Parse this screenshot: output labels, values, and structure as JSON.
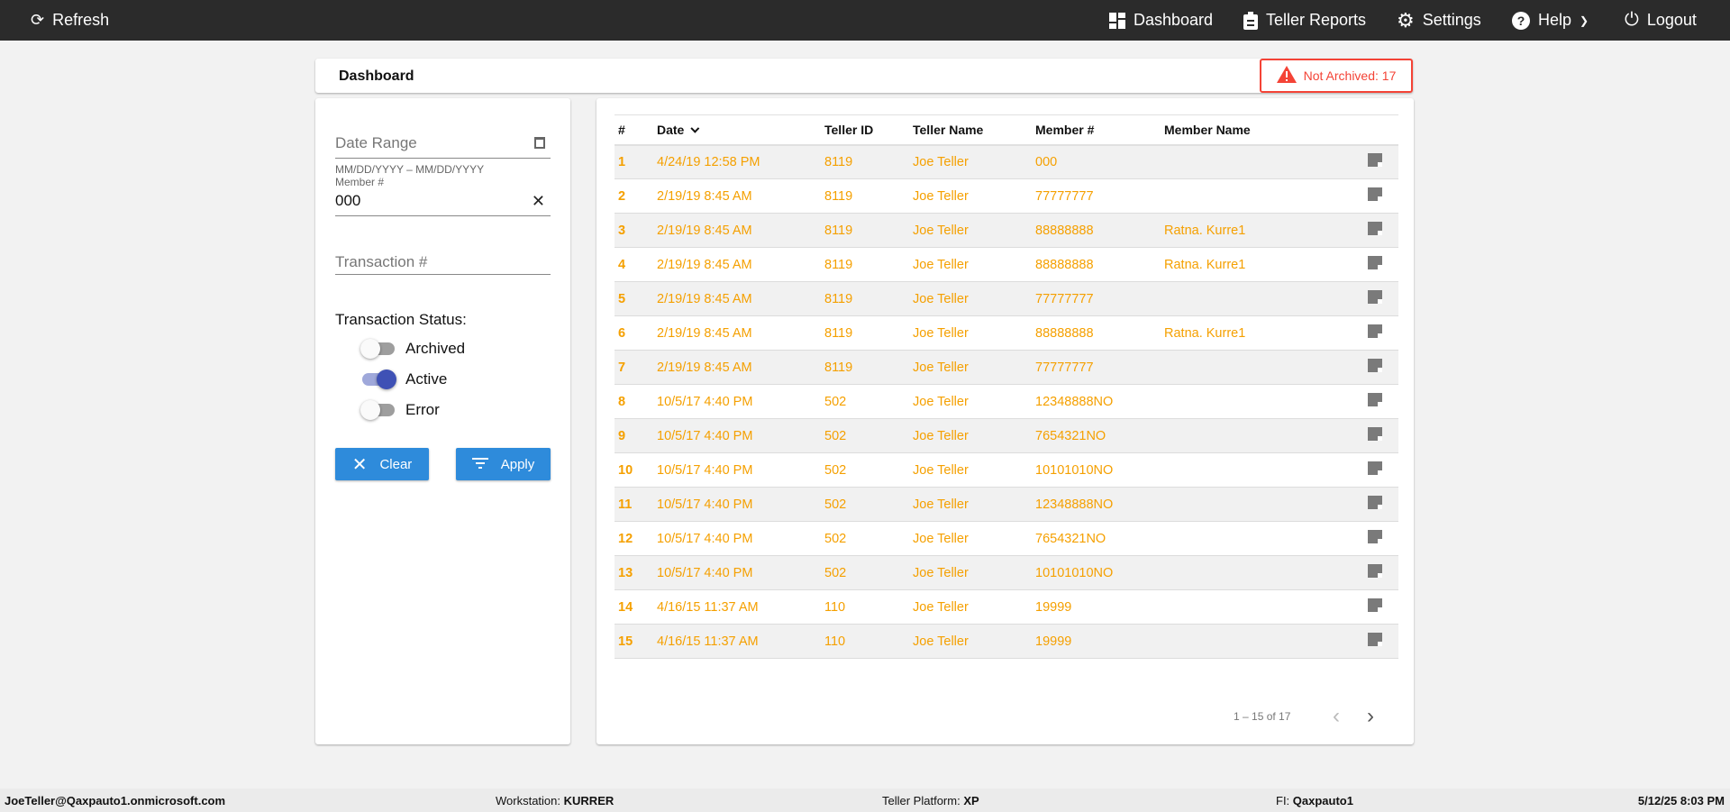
{
  "nav": {
    "refresh": "Refresh",
    "dashboard": "Dashboard",
    "teller_reports": "Teller Reports",
    "settings": "Settings",
    "help": "Help",
    "logout": "Logout"
  },
  "header": {
    "title": "Dashboard",
    "alert": "Not Archived: 17",
    "alert_color": "#f44336"
  },
  "filters": {
    "date_range_placeholder": "Date Range",
    "date_hint": "MM/DD/YYYY – MM/DD/YYYY",
    "member_label": "Member #",
    "member_value": "000",
    "transaction_placeholder": "Transaction #",
    "status_label": "Transaction Status:",
    "toggles": [
      {
        "label": "Archived",
        "on": false
      },
      {
        "label": "Active",
        "on": true
      },
      {
        "label": "Error",
        "on": false
      }
    ],
    "clear": "Clear",
    "apply": "Apply"
  },
  "table": {
    "columns": [
      "#",
      "Date",
      "Teller ID",
      "Teller Name",
      "Member #",
      "Member Name"
    ],
    "rows": [
      [
        "1",
        "4/24/19 12:58 PM",
        "8119",
        "Joe Teller",
        "000",
        ""
      ],
      [
        "2",
        "2/19/19 8:45 AM",
        "8119",
        "Joe Teller",
        "77777777",
        ""
      ],
      [
        "3",
        "2/19/19 8:45 AM",
        "8119",
        "Joe Teller",
        "88888888",
        "Ratna. Kurre1"
      ],
      [
        "4",
        "2/19/19 8:45 AM",
        "8119",
        "Joe Teller",
        "88888888",
        "Ratna. Kurre1"
      ],
      [
        "5",
        "2/19/19 8:45 AM",
        "8119",
        "Joe Teller",
        "77777777",
        ""
      ],
      [
        "6",
        "2/19/19 8:45 AM",
        "8119",
        "Joe Teller",
        "88888888",
        "Ratna. Kurre1"
      ],
      [
        "7",
        "2/19/19 8:45 AM",
        "8119",
        "Joe Teller",
        "77777777",
        ""
      ],
      [
        "8",
        "10/5/17 4:40 PM",
        "502",
        "Joe Teller",
        "12348888NO",
        ""
      ],
      [
        "9",
        "10/5/17 4:40 PM",
        "502",
        "Joe Teller",
        "7654321NO",
        ""
      ],
      [
        "10",
        "10/5/17 4:40 PM",
        "502",
        "Joe Teller",
        "10101010NO",
        ""
      ],
      [
        "11",
        "10/5/17 4:40 PM",
        "502",
        "Joe Teller",
        "12348888NO",
        ""
      ],
      [
        "12",
        "10/5/17 4:40 PM",
        "502",
        "Joe Teller",
        "7654321NO",
        ""
      ],
      [
        "13",
        "10/5/17 4:40 PM",
        "502",
        "Joe Teller",
        "10101010NO",
        ""
      ],
      [
        "14",
        "4/16/15 11:37 AM",
        "110",
        "Joe Teller",
        "19999",
        ""
      ],
      [
        "15",
        "4/16/15 11:37 AM",
        "110",
        "Joe Teller",
        "19999",
        ""
      ]
    ],
    "pagination": "1 – 15 of 17",
    "row_color": "#f5a000"
  },
  "footer": {
    "user": "JoeTeller@Qaxpauto1.onmicrosoft.com",
    "workstation_label": "Workstation:",
    "workstation": "KURRER",
    "platform_label": "Teller Platform:",
    "platform": "XP",
    "fi_label": "FI:",
    "fi": "Qaxpauto1",
    "datetime": "5/12/25 8:03 PM"
  }
}
